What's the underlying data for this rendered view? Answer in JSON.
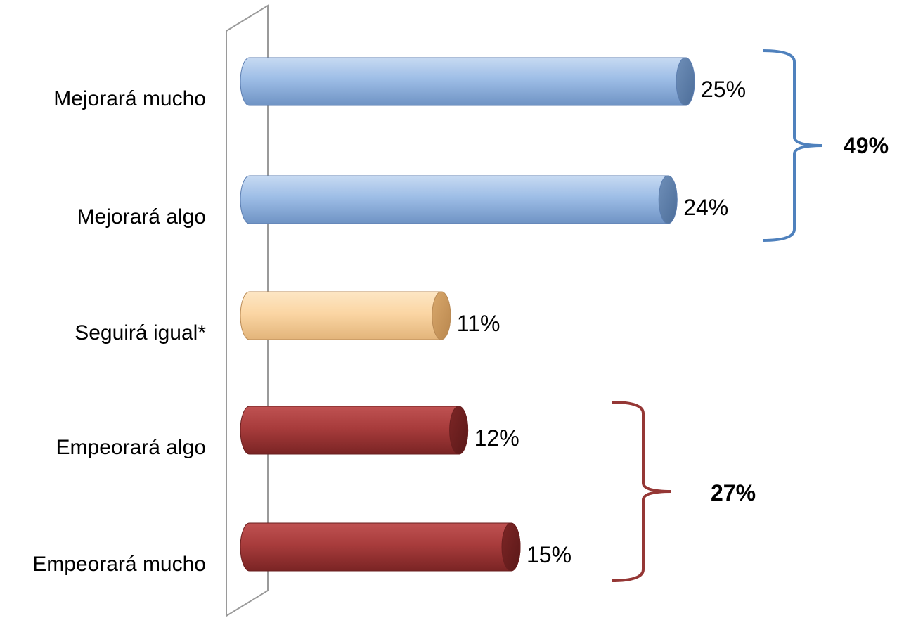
{
  "chart_data": {
    "type": "bar",
    "orientation": "horizontal",
    "categories": [
      "Mejorará mucho",
      "Mejorará algo",
      "Seguirá igual*",
      "Empeorará algo",
      "Empeorará mucho"
    ],
    "values": [
      25,
      24,
      11,
      12,
      15
    ],
    "value_labels": [
      "25%",
      "24%",
      "11%",
      "12%",
      "15%"
    ],
    "bar_colors": [
      "#8fb1de",
      "#8fb1de",
      "#f8cf98",
      "#a23636",
      "#a23636"
    ],
    "groups": [
      {
        "label": "49%",
        "categories": [
          "Mejorará mucho",
          "Mejorará algo"
        ],
        "color": "#4f81bd"
      },
      {
        "label": "27%",
        "categories": [
          "Empeorará algo",
          "Empeorará mucho"
        ],
        "color": "#953735"
      }
    ],
    "xlim": [
      0,
      25
    ],
    "grid": false,
    "legend": "none"
  }
}
